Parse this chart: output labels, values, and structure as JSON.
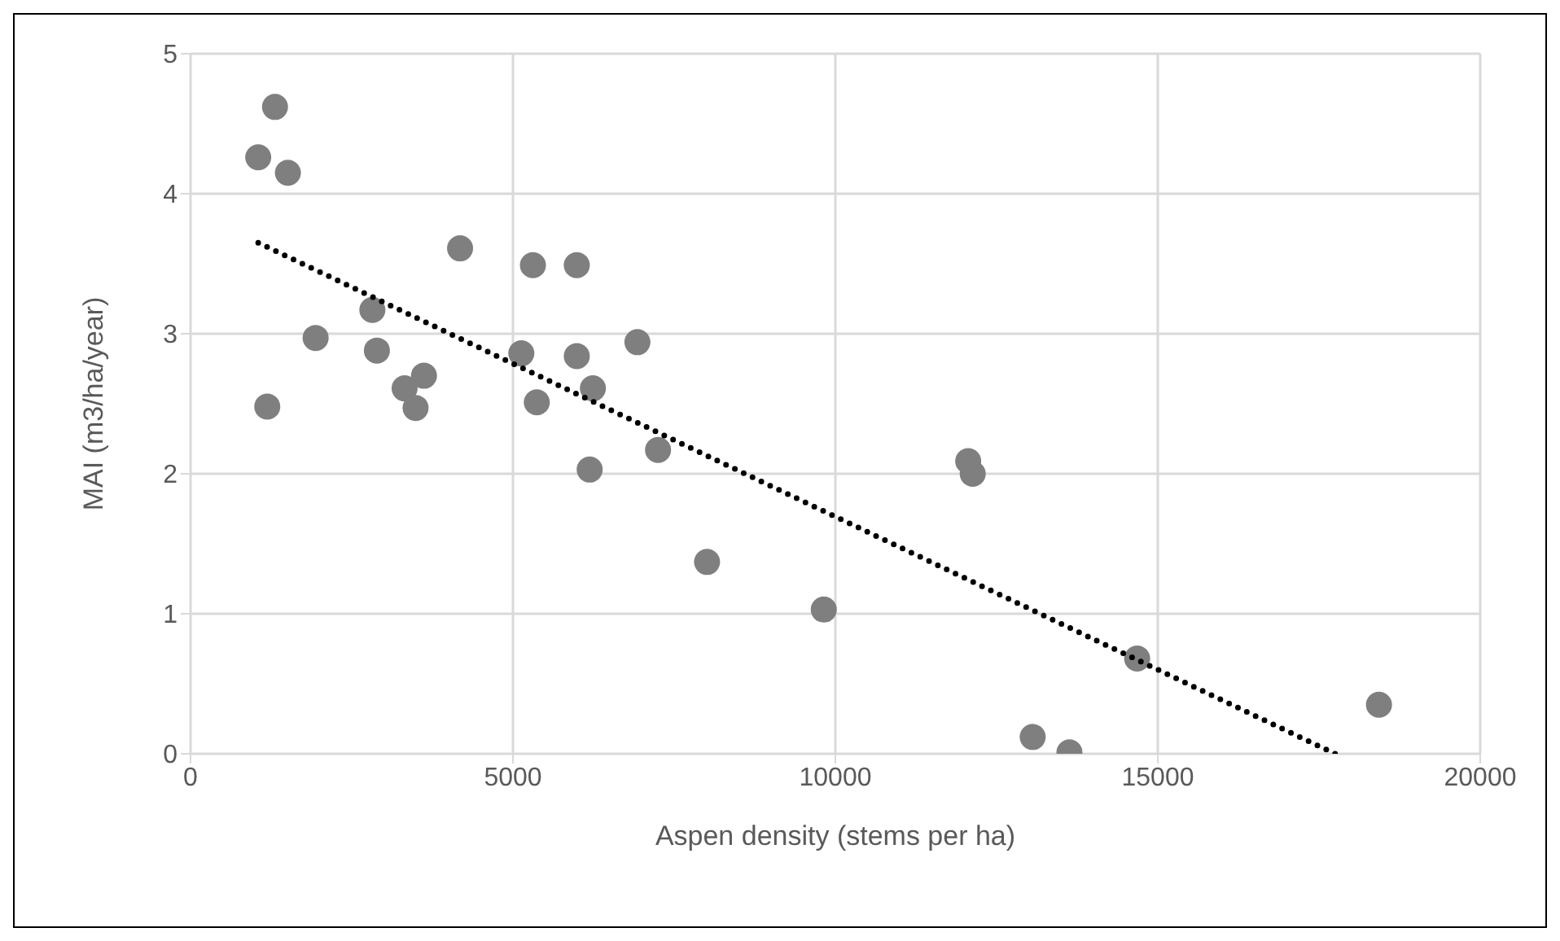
{
  "chart_data": {
    "type": "scatter",
    "xlabel": "Aspen density (stems per ha)",
    "ylabel": "MAI (m3/ha/year)",
    "xlim": [
      0,
      20000
    ],
    "xticks": [
      0,
      5000,
      10000,
      15000,
      20000
    ],
    "ylim": [
      0,
      5
    ],
    "yticks": [
      0,
      1,
      2,
      3,
      4,
      5
    ],
    "grid": true,
    "legend": false,
    "series": [
      {
        "color": "#7f7f7f",
        "marker": "circle",
        "x": [
          1310,
          1050,
          1510,
          4180,
          5310,
          5990,
          2820,
          1940,
          6930,
          2890,
          5130,
          5990,
          3620,
          3320,
          6240,
          1190,
          3490,
          5370,
          7250,
          6190,
          8010,
          9820,
          12060,
          12130,
          14680,
          13060,
          13630,
          18430
        ],
        "values": [
          4.62,
          4.26,
          4.15,
          3.61,
          3.49,
          3.49,
          3.17,
          2.97,
          2.94,
          2.88,
          2.86,
          2.84,
          2.7,
          2.61,
          2.61,
          2.48,
          2.47,
          2.51,
          2.17,
          2.03,
          1.37,
          1.03,
          2.09,
          2,
          0.68,
          0.12,
          0.01,
          0.35
        ]
      },
      {
        "type": "line",
        "color": "#000000",
        "marker": "none",
        "line_style": "dotted",
        "x": [
          1050,
          17750
        ],
        "values": [
          3.65,
          0
        ]
      }
    ]
  }
}
